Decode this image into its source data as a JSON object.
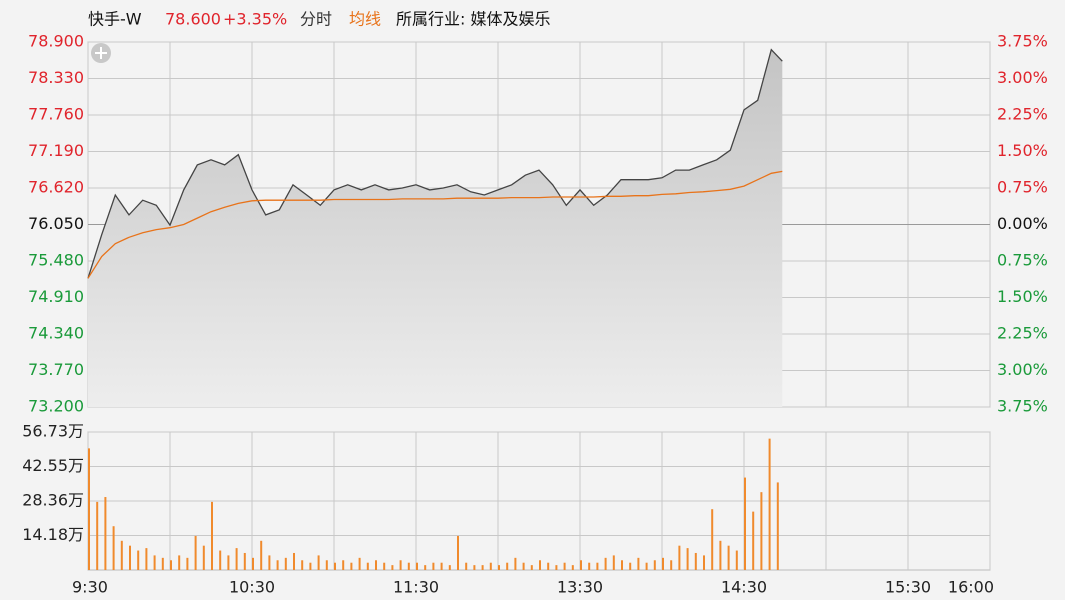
{
  "chart_data": [
    {
      "type": "line",
      "title": "快手-W",
      "price_label": "78.600",
      "change_label": "+3.35%",
      "mode_label": "分时",
      "subtitle": "所属行业: 媒体及娱乐",
      "up_color": "#e0242c",
      "down_color": "#1a9a3a",
      "xlim": [
        0,
        330
      ],
      "x": [
        0,
        5,
        10,
        15,
        20,
        25,
        30,
        35,
        40,
        45,
        50,
        55,
        60,
        65,
        70,
        75,
        80,
        85,
        90,
        95,
        100,
        105,
        110,
        115,
        120,
        125,
        130,
        135,
        140,
        145,
        150,
        155,
        160,
        165,
        170,
        175,
        180,
        185,
        190,
        195,
        200,
        205,
        210,
        215,
        220,
        225,
        230,
        235,
        240,
        245,
        250,
        254
      ],
      "series": [
        {
          "color": "#444444",
          "area": true,
          "values": [
            75.21,
            75.89,
            76.51,
            76.2,
            76.43,
            76.35,
            76.04,
            76.59,
            76.98,
            77.06,
            76.98,
            77.14,
            76.59,
            76.2,
            76.28,
            76.67,
            76.51,
            76.35,
            76.59,
            76.67,
            76.59,
            76.67,
            76.59,
            76.62,
            76.67,
            76.59,
            76.62,
            76.67,
            76.56,
            76.51,
            76.59,
            76.67,
            76.82,
            76.9,
            76.67,
            76.35,
            76.59,
            76.35,
            76.51,
            76.75,
            76.75,
            76.75,
            76.78,
            76.9,
            76.9,
            76.98,
            77.06,
            77.21,
            77.84,
            77.99,
            78.78,
            78.6
          ]
        },
        {
          "name": "均线",
          "color": "#e8731a",
          "values": [
            75.21,
            75.55,
            75.75,
            75.85,
            75.92,
            75.97,
            76.0,
            76.05,
            76.15,
            76.25,
            76.32,
            76.38,
            76.42,
            76.43,
            76.43,
            76.43,
            76.43,
            76.43,
            76.44,
            76.44,
            76.44,
            76.44,
            76.44,
            76.45,
            76.45,
            76.45,
            76.45,
            76.46,
            76.46,
            76.46,
            76.46,
            76.47,
            76.47,
            76.47,
            76.48,
            76.48,
            76.48,
            76.48,
            76.49,
            76.49,
            76.5,
            76.5,
            76.52,
            76.53,
            76.55,
            76.56,
            76.58,
            76.6,
            76.65,
            76.75,
            76.85,
            76.88
          ]
        }
      ],
      "ylim": [
        73.2,
        78.9
      ],
      "yticks": [
        {
          "value": 73.2,
          "label": "73.200"
        },
        {
          "value": 73.77,
          "label": "73.770"
        },
        {
          "value": 74.34,
          "label": "74.340"
        },
        {
          "value": 74.91,
          "label": "74.910"
        },
        {
          "value": 75.48,
          "label": "75.480"
        },
        {
          "value": 76.05,
          "label": "76.050"
        },
        {
          "value": 76.62,
          "label": "76.620"
        },
        {
          "value": 77.19,
          "label": "77.190"
        },
        {
          "value": 77.76,
          "label": "77.760"
        },
        {
          "value": 78.33,
          "label": "78.330"
        },
        {
          "value": 78.9,
          "label": "78.900"
        }
      ],
      "y2lim": [
        -3.75,
        3.75
      ],
      "y2ticks": [
        {
          "value": -3.75,
          "label": "3.75%"
        },
        {
          "value": -3,
          "label": "3.00%"
        },
        {
          "value": -2.25,
          "label": "2.25%"
        },
        {
          "value": -1.5,
          "label": "1.50%"
        },
        {
          "value": -0.75,
          "label": "0.75%"
        },
        {
          "value": 0,
          "label": "0.00%"
        },
        {
          "value": 0.75,
          "label": "0.75%"
        },
        {
          "value": 1.5,
          "label": "1.50%"
        },
        {
          "value": 2.25,
          "label": "2.25%"
        },
        {
          "value": 3,
          "label": "3.00%"
        },
        {
          "value": 3.75,
          "label": "3.75%"
        }
      ],
      "grid": true
    },
    {
      "type": "bar",
      "color": "#f08a2c",
      "xlim": [
        0,
        330
      ],
      "x": [
        0,
        3,
        6,
        9,
        12,
        15,
        18,
        21,
        24,
        27,
        30,
        33,
        36,
        39,
        42,
        45,
        48,
        51,
        54,
        57,
        60,
        63,
        66,
        69,
        72,
        75,
        78,
        81,
        84,
        87,
        90,
        93,
        96,
        99,
        102,
        105,
        108,
        111,
        114,
        117,
        120,
        123,
        126,
        129,
        132,
        135,
        138,
        141,
        144,
        147,
        150,
        153,
        156,
        159,
        162,
        165,
        168,
        171,
        174,
        177,
        180,
        183,
        186,
        189,
        192,
        195,
        198,
        201,
        204,
        207,
        210,
        213,
        216,
        219,
        222,
        225,
        228,
        231,
        234,
        237,
        240,
        243,
        246,
        249,
        252
      ],
      "values": [
        50,
        28,
        30,
        18,
        12,
        10,
        8,
        9,
        6,
        5,
        4,
        6,
        5,
        14,
        10,
        28,
        8,
        6,
        9,
        7,
        5,
        12,
        6,
        4,
        5,
        7,
        4,
        3,
        6,
        4,
        3,
        4,
        3,
        5,
        3,
        4,
        3,
        2,
        4,
        3,
        3,
        2,
        3,
        3,
        2,
        14,
        3,
        2,
        2,
        3,
        2,
        3,
        5,
        3,
        2,
        4,
        3,
        2,
        3,
        2,
        4,
        3,
        3,
        5,
        6,
        4,
        3,
        5,
        3,
        4,
        5,
        4,
        10,
        9,
        7,
        6,
        25,
        12,
        10,
        8,
        38,
        24,
        32,
        54,
        36
      ],
      "ylim": [
        0,
        56.73
      ],
      "yticks": [
        {
          "value": 14.18,
          "label": "14.18万"
        },
        {
          "value": 28.36,
          "label": "28.36万"
        },
        {
          "value": 42.55,
          "label": "42.55万"
        },
        {
          "value": 56.73,
          "label": "56.73万"
        }
      ],
      "xticks": [
        {
          "value": 0,
          "label": "9:30"
        },
        {
          "value": 60,
          "label": "10:30"
        },
        {
          "value": 120,
          "label": "11:30"
        },
        {
          "value": 180,
          "label": "13:30"
        },
        {
          "value": 240,
          "label": "14:30"
        },
        {
          "value": 300,
          "label": "15:30"
        },
        {
          "value": 330,
          "label": "16:00"
        }
      ],
      "grid": true
    }
  ]
}
